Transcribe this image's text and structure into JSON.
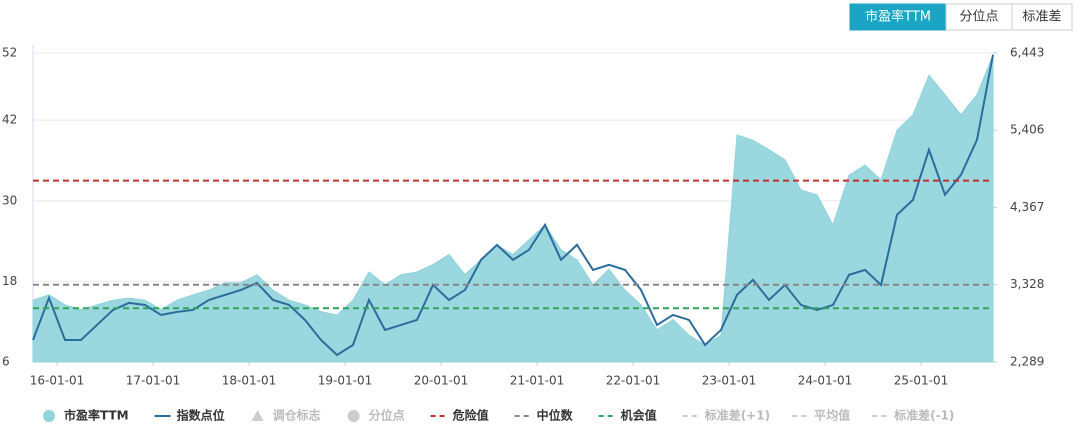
{
  "tabs": {
    "items": [
      "市盈率TTM",
      "分位点",
      "标准差"
    ],
    "active": 0
  },
  "chart_data": {
    "type": "area-line",
    "x": [
      "15-10-01",
      "15-12-01",
      "16-02-01",
      "16-04-01",
      "16-06-01",
      "16-08-01",
      "16-10-01",
      "16-12-01",
      "17-02-01",
      "17-04-01",
      "17-06-01",
      "17-08-01",
      "17-10-01",
      "17-12-01",
      "18-02-01",
      "18-04-01",
      "18-06-01",
      "18-08-01",
      "18-10-01",
      "18-12-01",
      "19-02-01",
      "19-04-01",
      "19-06-01",
      "19-08-01",
      "19-10-01",
      "19-12-01",
      "20-02-01",
      "20-04-01",
      "20-06-01",
      "20-08-01",
      "20-10-01",
      "20-12-01",
      "21-02-01",
      "21-04-01",
      "21-06-01",
      "21-08-01",
      "21-10-01",
      "21-12-01",
      "22-02-01",
      "22-04-01",
      "22-06-01",
      "22-08-01",
      "22-10-01",
      "22-12-01",
      "23-02-01",
      "23-04-01",
      "23-06-01",
      "23-08-01",
      "23-10-01",
      "23-12-01",
      "24-02-01",
      "24-04-01",
      "24-06-01",
      "24-08-01",
      "24-10-01",
      "24-12-01",
      "25-02-01",
      "25-04-01",
      "25-06-01",
      "25-08-01",
      "25-10-01"
    ],
    "xlim": [
      "15-10-01",
      "25-10-01"
    ],
    "xticks": [
      "16-01-01",
      "17-01-01",
      "18-01-01",
      "19-01-01",
      "20-01-01",
      "21-01-01",
      "22-01-01",
      "23-01-01",
      "24-01-01",
      "25-01-01"
    ],
    "ylim": [
      6,
      52
    ],
    "yticks": [
      6,
      18,
      30,
      42,
      52
    ],
    "y2lim": [
      2289,
      6443
    ],
    "y2ticks": [
      {
        "value": 2289,
        "label": "2,289"
      },
      {
        "value": 3328,
        "label": "3,328"
      },
      {
        "value": 4367,
        "label": "4,367"
      },
      {
        "value": 5406,
        "label": "5,406"
      },
      {
        "value": 6443,
        "label": "6,443"
      }
    ],
    "grid": true,
    "series": [
      {
        "name": "市盈率TTM",
        "color": "#8fd3dc",
        "kind": "area",
        "values": [
          15.2,
          16,
          14.5,
          13.8,
          14.5,
          15.2,
          15.5,
          15.2,
          13.8,
          15.2,
          16,
          16.7,
          17.8,
          17.8,
          19,
          16.7,
          15.2,
          14.5,
          13.5,
          13,
          15.2,
          19.4,
          17.5,
          19,
          19.4,
          20.5,
          22,
          19,
          21.2,
          23.4,
          22,
          24.2,
          26.4,
          22.7,
          21.2,
          17.5,
          19.8,
          16.7,
          14.5,
          10.8,
          12.3,
          10,
          8.5,
          10,
          39.8,
          39,
          37.6,
          36.1,
          31.6,
          30.9,
          26.4,
          33.8,
          35.3,
          33.1,
          40.5,
          42.8,
          48.7,
          45.8,
          42.8,
          45.8,
          51.7
        ]
      },
      {
        "name": "指数点位",
        "color": "#2a6d9c",
        "kind": "line",
        "axis": "y2",
        "values": [
          2585,
          3150,
          2585,
          2585,
          2787,
          2989,
          3083,
          3056,
          2922,
          2962,
          2989,
          3123,
          3191,
          3258,
          3352,
          3123,
          3056,
          2854,
          2585,
          2383,
          2518,
          3123,
          2720,
          2787,
          2854,
          3325,
          3123,
          3258,
          3662,
          3864,
          3662,
          3797,
          4133,
          3662,
          3864,
          3527,
          3595,
          3527,
          3258,
          2787,
          2922,
          2854,
          2518,
          2720,
          3191,
          3393,
          3123,
          3325,
          3056,
          2989,
          3056,
          3460,
          3527,
          3325,
          4268,
          4470,
          5143,
          4537,
          4806,
          5277,
          6421
        ]
      }
    ],
    "hlines": [
      {
        "name": "危险值",
        "color": "#c0312b",
        "value": 33
      },
      {
        "name": "中位数",
        "color": "#888888",
        "value": 17.5
      },
      {
        "name": "机会值",
        "color": "#2ea35a",
        "value": 14
      }
    ],
    "inactive_legend": [
      {
        "name": "调仓标志",
        "symbol": "triangle"
      },
      {
        "name": "分位点",
        "symbol": "circle"
      },
      {
        "name": "标准差(+1)",
        "symbol": "dash"
      },
      {
        "name": "平均值",
        "symbol": "dash"
      },
      {
        "name": "标准差(-1)",
        "symbol": "dash"
      }
    ]
  }
}
